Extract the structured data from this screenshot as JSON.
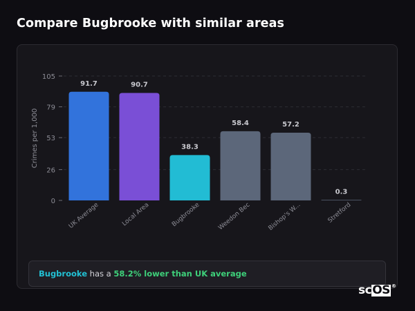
{
  "page": {
    "title": "Compare Bugbrooke with similar areas"
  },
  "summary": {
    "area": "Bugbrooke",
    "middle": " has a ",
    "difference": "58.2% lower than UK average"
  },
  "logo": {
    "prefix": "sc",
    "boxed": "OS",
    "mark": "®"
  },
  "chart_data": {
    "type": "bar",
    "ylabel": "Crimes per 1,000",
    "xlabel": "",
    "ylim": [
      0,
      105
    ],
    "yticks": [
      0,
      26,
      53,
      79,
      105
    ],
    "grid": "dashed horizontal",
    "categories": [
      "UK Average",
      "Local Area",
      "Bugbrooke",
      "Weedon Bec",
      "Bishop's W...",
      "Stretford"
    ],
    "values": [
      91.7,
      90.7,
      38.3,
      58.4,
      57.2,
      0.3
    ],
    "value_labels": [
      "91.7",
      "90.7",
      "38.3",
      "58.4",
      "57.2",
      "0.3"
    ],
    "colors": [
      "#3273dc",
      "#7a4fd6",
      "#22bcd4",
      "#5c677a",
      "#5c677a",
      "#5c677a"
    ],
    "label_color": "#c9c9cf",
    "tick_color": "#8d8d96"
  }
}
